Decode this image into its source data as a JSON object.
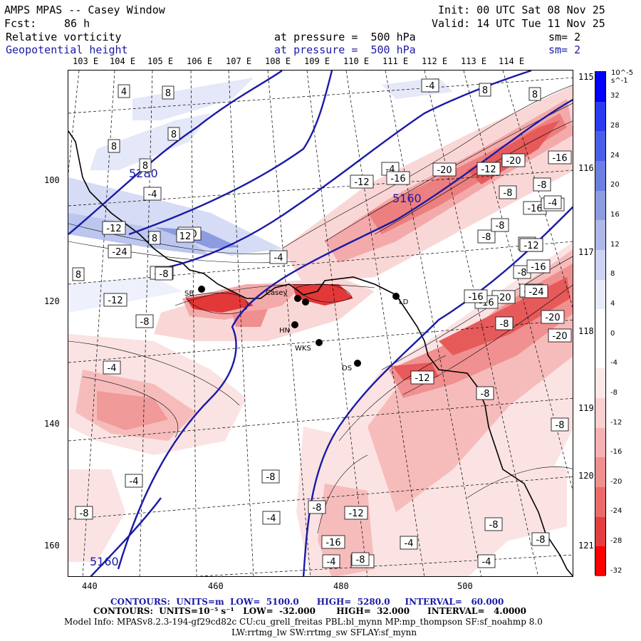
{
  "header": {
    "title": "AMPS MPAS -- Casey Window",
    "fcst_label": "Fcst:",
    "fcst_value": "86 h",
    "init": "Init: 00 UTC Sat 08 Nov 25",
    "valid": "Valid: 14 UTC Tue 11 Nov 25",
    "field1_name": "Relative vorticity",
    "field1_level": "at pressure =  500 hPa",
    "field1_sm": "sm= 2",
    "field2_name": "Geopotential height",
    "field2_level": "at pressure =  500 hPa",
    "field2_sm": "sm= 2"
  },
  "map": {
    "top_lon_labels": [
      "103 E",
      "104 E",
      "105 E",
      "106 E",
      "107 E",
      "108 E",
      "109 E",
      "110 E",
      "111 E",
      "112 E",
      "113 E",
      "114 E"
    ],
    "right_lon_labels": [
      "115 E",
      "116 E",
      "117 E",
      "118 E",
      "119 E",
      "120 E",
      "121 E"
    ],
    "y_ticks": [
      "100",
      "120",
      "140",
      "160"
    ],
    "x_ticks": [
      "440",
      "460",
      "480",
      "500"
    ],
    "vorticity_labels": [
      "4",
      "8",
      "-4",
      "8",
      "8",
      "8",
      "8",
      "8",
      "-4",
      "-12",
      "-4",
      "-8",
      "-16",
      "-12",
      "-24",
      "-12",
      "-20",
      "-16",
      "-20",
      "-12",
      "-8",
      "-16",
      "-12",
      "-8",
      "-4",
      "-4",
      "-8",
      "-12",
      "-16",
      "-20",
      "-24",
      "-8",
      "-24",
      "-20",
      "-16",
      "-12",
      "-8",
      "-20",
      "-8",
      "-8",
      "-4",
      "-4",
      "-8",
      "-4",
      "-8",
      "-12",
      "-16",
      "-12",
      "-8",
      "-8",
      "-4",
      "-4",
      "-4",
      "-8",
      "8",
      "8",
      "-4",
      "-8",
      "-12",
      "12",
      "-8",
      "-12",
      "-20",
      "-8",
      "-16"
    ],
    "height_labels": [
      "5280",
      "5160",
      "5160"
    ],
    "stations": [
      "SB",
      "Casey",
      "LD",
      "HN",
      "WKS",
      "DS"
    ]
  },
  "colorbar": {
    "unit_label": "10^-5 s^-1",
    "labels": [
      "32",
      "28",
      "24",
      "20",
      "16",
      "12",
      "8",
      "4",
      "0",
      "-4",
      "-8",
      "-12",
      "-16",
      "-20",
      "-24",
      "-28",
      "-32"
    ]
  },
  "footer": {
    "line1": "CONTOURS:  UNITS=m  LOW=  5100.0      HIGH=  5280.0     INTERVAL=   60.000",
    "line2": "CONTOURS:  UNITS=10⁻⁵ s⁻¹   LOW=  -32.000       HIGH=  32.000      INTERVAL=   4.0000",
    "line3": "Model Info: MPASv8.2.3-194-gf29cd82c CU:cu_grell_freitas PBL:bl_mynn MP:mp_thompson SF:sf_noahmp 8.0",
    "line4": "LW:rrtmg_lw SW:rrtmg_sw SFLAY:sf_mynn"
  },
  "colors": {
    "height_contour": "#1a1aa6",
    "red_max": "#ff0000",
    "blue_max": "#0000ff"
  }
}
